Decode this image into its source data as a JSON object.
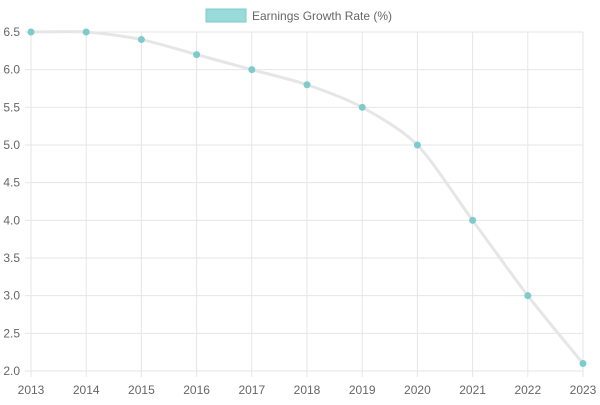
{
  "chart_data": {
    "type": "line",
    "title": "",
    "xlabel": "",
    "ylabel": "",
    "categories": [
      "2013",
      "2014",
      "2015",
      "2016",
      "2017",
      "2018",
      "2019",
      "2020",
      "2021",
      "2022",
      "2023"
    ],
    "series": [
      {
        "name": "Earnings Growth Rate (%)",
        "values": [
          6.5,
          6.5,
          6.4,
          6.2,
          6.0,
          5.8,
          5.5,
          5.0,
          4.0,
          3.0,
          2.1
        ]
      }
    ],
    "ylim": [
      2.0,
      6.5
    ],
    "yticks": [
      "6.5",
      "6.0",
      "5.5",
      "5.0",
      "4.5",
      "4.0",
      "3.5",
      "3.0",
      "2.5",
      "2.0"
    ],
    "grid": true,
    "legend_position": "top-center",
    "colors": {
      "line": "#e6e6e6",
      "point": "#7ecbcb",
      "legend_fill": "#99dada",
      "legend_border": "#7ecbcb",
      "grid": "#e6e6e6",
      "text": "#666666"
    }
  }
}
